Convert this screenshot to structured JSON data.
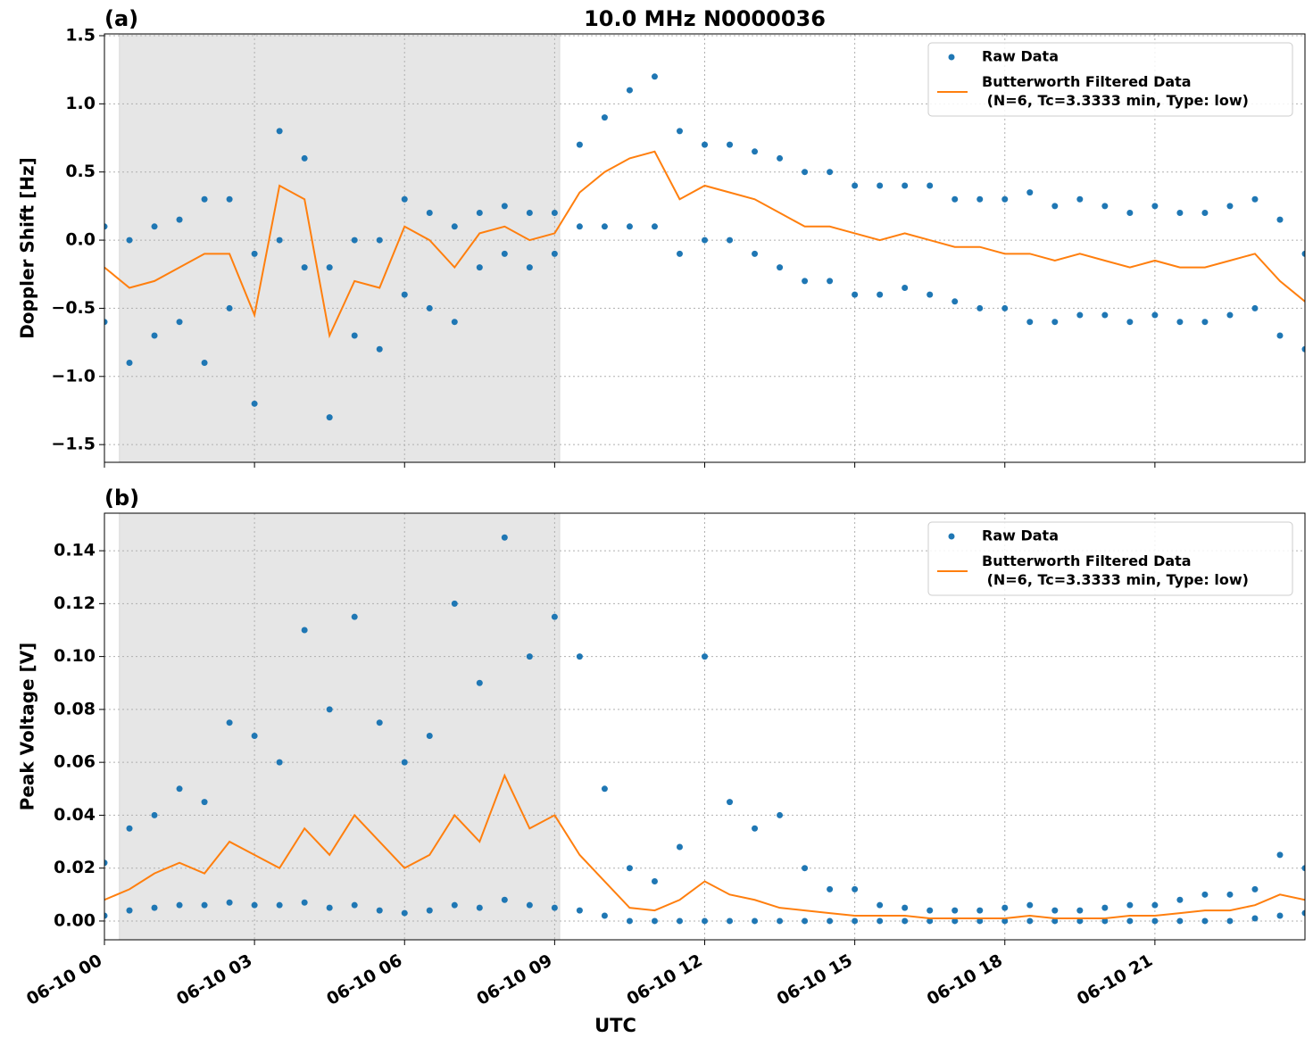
{
  "chart_data": [
    {
      "type": "scatter",
      "title": "10.0 MHz N0000036",
      "panel_label": "(a)",
      "ylabel": "Doppler Shift [Hz]",
      "xlim": [
        0,
        24
      ],
      "xticks": [
        0,
        3,
        6,
        9,
        12,
        15,
        18,
        21
      ],
      "ylim": [
        -1.63,
        1.513
      ],
      "yticks": [
        {
          "value": -1.5,
          "label": "−1.5"
        },
        {
          "value": -1.0,
          "label": "−1.0"
        },
        {
          "value": -0.5,
          "label": "−0.5"
        },
        {
          "value": 0.0,
          "label": "0.0"
        },
        {
          "value": 0.5,
          "label": "0.5"
        },
        {
          "value": 1.0,
          "label": "1.0"
        },
        {
          "value": 1.5,
          "label": "1.5"
        }
      ],
      "grid": true,
      "legend": "upper right",
      "shaded_span": [
        0.3,
        9.1
      ],
      "series": [
        {
          "name": "Raw Data",
          "style": "markers",
          "color": "#1f77b4",
          "x": [
            0,
            0.5,
            1,
            1.5,
            2,
            2.5,
            3,
            3.5,
            4,
            4.5,
            5,
            5.5,
            6,
            6.5,
            7,
            7.5,
            8,
            8.5,
            9,
            9.5,
            10,
            10.5,
            11,
            11.5,
            12,
            12.5,
            13,
            13.5,
            14,
            14.5,
            15,
            15.5,
            16,
            16.5,
            17,
            17.5,
            18,
            18.5,
            19,
            19.5,
            20,
            20.5,
            21,
            21.5,
            22,
            22.5,
            23,
            23.5,
            24,
            0,
            0.5,
            1,
            1.5,
            2,
            2.5,
            3,
            3.5,
            4,
            4.5,
            5,
            5.5,
            6,
            6.5,
            7,
            7.5,
            8,
            8.5,
            9,
            9.5,
            10,
            10.5,
            11,
            11.5,
            12,
            12.5,
            13,
            13.5,
            14,
            14.5,
            15,
            15.5,
            16,
            16.5,
            17,
            17.5,
            18,
            18.5,
            19,
            19.5,
            20,
            20.5,
            21,
            21.5,
            22,
            22.5,
            23,
            23.5,
            24
          ],
          "values": [
            0.1,
            0.0,
            0.1,
            0.15,
            0.3,
            0.3,
            -0.1,
            0.8,
            0.6,
            -0.2,
            0.0,
            0.0,
            0.3,
            0.2,
            0.1,
            0.2,
            0.25,
            0.2,
            0.2,
            0.7,
            0.9,
            1.1,
            1.2,
            0.8,
            0.7,
            0.7,
            0.65,
            0.6,
            0.5,
            0.5,
            0.4,
            0.4,
            0.4,
            0.4,
            0.3,
            0.3,
            0.3,
            0.35,
            0.25,
            0.3,
            0.25,
            0.2,
            0.25,
            0.2,
            0.2,
            0.25,
            0.3,
            0.15,
            -0.1,
            -0.6,
            -0.9,
            -0.7,
            -0.6,
            -0.9,
            -0.5,
            -1.2,
            0.0,
            -0.2,
            -1.3,
            -0.7,
            -0.8,
            -0.4,
            -0.5,
            -0.6,
            -0.2,
            -0.1,
            -0.2,
            -0.1,
            0.1,
            0.1,
            0.1,
            0.1,
            -0.1,
            0.0,
            0.0,
            -0.1,
            -0.2,
            -0.3,
            -0.3,
            -0.4,
            -0.4,
            -0.35,
            -0.4,
            -0.45,
            -0.5,
            -0.5,
            -0.6,
            -0.6,
            -0.55,
            -0.55,
            -0.6,
            -0.55,
            -0.6,
            -0.6,
            -0.55,
            -0.5,
            -0.7,
            -0.8
          ]
        },
        {
          "name": "Butterworth Filtered Data (N=6, Tc=3.3333 min, Type: low)",
          "style": "line",
          "color": "#ff7f0e",
          "x": [
            0,
            0.5,
            1,
            1.5,
            2,
            2.5,
            3,
            3.5,
            4,
            4.5,
            5,
            5.5,
            6,
            6.5,
            7,
            7.5,
            8,
            8.5,
            9,
            9.5,
            10,
            10.5,
            11,
            11.5,
            12,
            12.5,
            13,
            13.5,
            14,
            14.5,
            15,
            15.5,
            16,
            16.5,
            17,
            17.5,
            18,
            18.5,
            19,
            19.5,
            20,
            20.5,
            21,
            21.5,
            22,
            22.5,
            23,
            23.5,
            24
          ],
          "values": [
            -0.2,
            -0.35,
            -0.3,
            -0.2,
            -0.1,
            -0.1,
            -0.55,
            0.4,
            0.3,
            -0.7,
            -0.3,
            -0.35,
            0.1,
            0.0,
            -0.2,
            0.05,
            0.1,
            0.0,
            0.05,
            0.35,
            0.5,
            0.6,
            0.65,
            0.3,
            0.4,
            0.35,
            0.3,
            0.2,
            0.1,
            0.1,
            0.05,
            0.0,
            0.05,
            0.0,
            -0.05,
            -0.05,
            -0.1,
            -0.1,
            -0.15,
            -0.1,
            -0.15,
            -0.2,
            -0.15,
            -0.2,
            -0.2,
            -0.15,
            -0.1,
            -0.3,
            -0.45
          ]
        }
      ]
    },
    {
      "type": "scatter",
      "panel_label": "(b)",
      "ylabel": "Peak Voltage [V]",
      "xlabel": "UTC",
      "xlim": [
        0,
        24
      ],
      "xticks": [
        {
          "value": 0,
          "label": "06-10 00"
        },
        {
          "value": 3,
          "label": "06-10 03"
        },
        {
          "value": 6,
          "label": "06-10 06"
        },
        {
          "value": 9,
          "label": "06-10 09"
        },
        {
          "value": 12,
          "label": "06-10 12"
        },
        {
          "value": 15,
          "label": "06-10 15"
        },
        {
          "value": 18,
          "label": "06-10 18"
        },
        {
          "value": 21,
          "label": "06-10 21"
        }
      ],
      "ylim": [
        -0.0071,
        0.1542
      ],
      "yticks": [
        {
          "value": 0,
          "label": "0.00"
        },
        {
          "value": 0.02,
          "label": "0.02"
        },
        {
          "value": 0.04,
          "label": "0.04"
        },
        {
          "value": 0.06,
          "label": "0.06"
        },
        {
          "value": 0.08,
          "label": "0.08"
        },
        {
          "value": 0.1,
          "label": "0.10"
        },
        {
          "value": 0.12,
          "label": "0.12"
        },
        {
          "value": 0.14,
          "label": "0.14"
        }
      ],
      "grid": true,
      "legend": "upper right",
      "shaded_span": [
        0.3,
        9.1
      ],
      "series": [
        {
          "name": "Raw Data",
          "style": "markers",
          "color": "#1f77b4",
          "x": [
            0,
            0.5,
            1,
            1.5,
            2,
            2.5,
            3,
            3.5,
            4,
            4.5,
            5,
            5.5,
            6,
            6.5,
            7,
            7.5,
            8,
            8.5,
            9,
            9.5,
            10,
            10.5,
            11,
            11.5,
            12,
            12.5,
            13,
            13.5,
            14,
            14.5,
            15,
            15.5,
            16,
            16.5,
            17,
            17.5,
            18,
            18.5,
            19,
            19.5,
            20,
            20.5,
            21,
            21.5,
            22,
            22.5,
            23,
            23.5,
            24,
            0,
            0.5,
            1,
            1.5,
            2,
            2.5,
            3,
            3.5,
            4,
            4.5,
            5,
            5.5,
            6,
            6.5,
            7,
            7.5,
            8,
            8.5,
            9,
            9.5,
            10,
            10.5,
            11,
            11.5,
            12,
            12.5,
            13,
            13.5,
            14,
            14.5,
            15,
            15.5,
            16,
            16.5,
            17,
            17.5,
            18,
            18.5,
            19,
            19.5,
            20,
            20.5,
            21,
            21.5,
            22,
            22.5,
            23,
            23.5,
            24
          ],
          "values": [
            0.022,
            0.035,
            0.04,
            0.05,
            0.045,
            0.075,
            0.07,
            0.06,
            0.11,
            0.08,
            0.115,
            0.075,
            0.06,
            0.07,
            0.12,
            0.09,
            0.145,
            0.1,
            0.115,
            0.1,
            0.05,
            0.02,
            0.015,
            0.028,
            0.1,
            0.045,
            0.035,
            0.04,
            0.02,
            0.012,
            0.012,
            0.006,
            0.005,
            0.004,
            0.004,
            0.004,
            0.005,
            0.006,
            0.004,
            0.004,
            0.005,
            0.006,
            0.006,
            0.008,
            0.01,
            0.01,
            0.012,
            0.025,
            0.02,
            0.002,
            0.004,
            0.005,
            0.006,
            0.006,
            0.007,
            0.006,
            0.006,
            0.007,
            0.005,
            0.006,
            0.004,
            0.003,
            0.004,
            0.006,
            0.005,
            0.008,
            0.006,
            0.005,
            0.004,
            0.002,
            0.0,
            0.0,
            0.0,
            0.0,
            0.0,
            0.0,
            0.0,
            0.0,
            0.0,
            0.0,
            0.0,
            0.0,
            0.0,
            0.0,
            0.0,
            0.0,
            0.0,
            0.0,
            0.0,
            0.0,
            0.0,
            0.0,
            0.0,
            0.0,
            0.0,
            0.001,
            0.002,
            0.003
          ]
        },
        {
          "name": "Butterworth Filtered Data (N=6, Tc=3.3333 min, Type: low)",
          "style": "line",
          "color": "#ff7f0e",
          "x": [
            0,
            0.5,
            1,
            1.5,
            2,
            2.5,
            3,
            3.5,
            4,
            4.5,
            5,
            5.5,
            6,
            6.5,
            7,
            7.5,
            8,
            8.5,
            9,
            9.5,
            10,
            10.5,
            11,
            11.5,
            12,
            12.5,
            13,
            13.5,
            14,
            14.5,
            15,
            15.5,
            16,
            16.5,
            17,
            17.5,
            18,
            18.5,
            19,
            19.5,
            20,
            20.5,
            21,
            21.5,
            22,
            22.5,
            23,
            23.5,
            24
          ],
          "values": [
            0.008,
            0.012,
            0.018,
            0.022,
            0.018,
            0.03,
            0.025,
            0.02,
            0.035,
            0.025,
            0.04,
            0.03,
            0.02,
            0.025,
            0.04,
            0.03,
            0.055,
            0.035,
            0.04,
            0.025,
            0.015,
            0.005,
            0.004,
            0.008,
            0.015,
            0.01,
            0.008,
            0.005,
            0.004,
            0.003,
            0.002,
            0.002,
            0.002,
            0.001,
            0.001,
            0.001,
            0.001,
            0.002,
            0.001,
            0.001,
            0.001,
            0.002,
            0.002,
            0.003,
            0.004,
            0.004,
            0.006,
            0.01,
            0.008
          ]
        }
      ]
    }
  ]
}
